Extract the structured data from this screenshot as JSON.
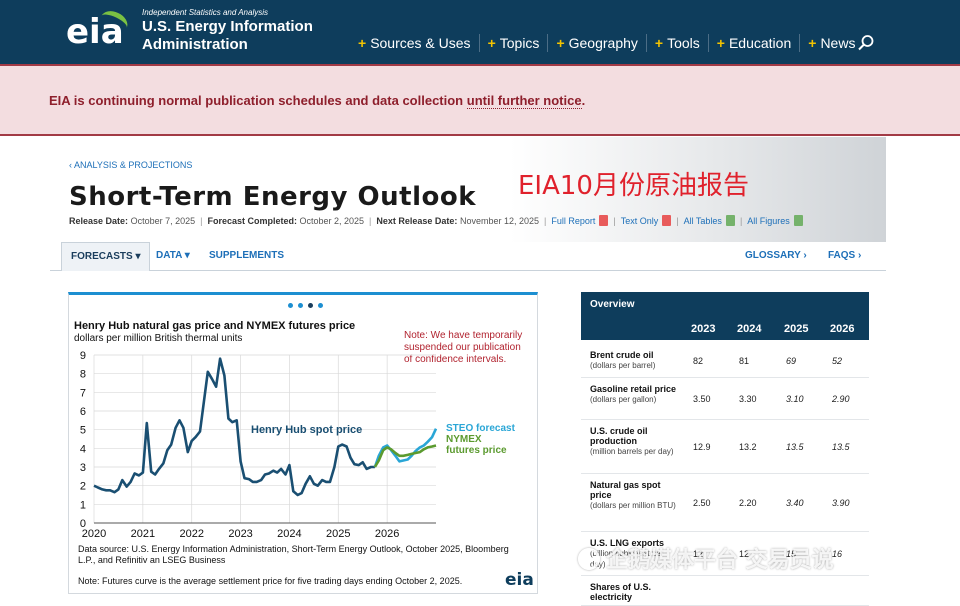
{
  "header": {
    "logo_text": "eia",
    "tagline": "Independent Statistics and Analysis",
    "org_name": "U.S. Energy Information Administration",
    "nav": [
      "Sources & Uses",
      "Topics",
      "Geography",
      "Tools",
      "Education",
      "News"
    ],
    "search_icon": "search-icon"
  },
  "notice": {
    "prefix": "EIA is continuing normal publication schedules and data collection ",
    "link": "until further notice",
    "suffix": "."
  },
  "page": {
    "breadcrumb": "‹ ANALYSIS & PROJECTIONS",
    "title": "Short-Term Energy Outlook",
    "overlay_text": "EIA10月份原油报告",
    "release_label": "Release Date:",
    "release_date": "October 7, 2025",
    "forecast_label": "Forecast Completed:",
    "forecast_date": "October 2, 2025",
    "next_label": "Next Release Date:",
    "next_date": "November 12, 2025",
    "links": [
      "Full Report",
      "Text Only",
      "All Tables",
      "All Figures"
    ]
  },
  "tabs": {
    "forecasts": "FORECASTS ▾",
    "data": "DATA ▾",
    "supplements": "SUPPLEMENTS",
    "glossary": "GLOSSARY ›",
    "faqs": "FAQS ›"
  },
  "chart": {
    "title": "Henry Hub natural gas price and NYMEX futures price",
    "subtitle": "dollars per million British thermal units",
    "note": "Note: We have temporarily suspended our publication of confidence intervals.",
    "source": "Data source: U.S. Energy Information Administration, Short-Term Energy Outlook, October 2025, Bloomberg L.P., and Refinitiv an LSEG Business",
    "footnote": "Note: Futures curve is the average settlement price for five trading days ending October 2, 2025.",
    "logo": "eia",
    "label_spot": "Henry Hub spot price",
    "label_steo": "STEO forecast",
    "label_nymex": "NYMEX futures price"
  },
  "chart_data": {
    "type": "line",
    "title": "Henry Hub natural gas price and NYMEX futures price",
    "ylabel": "dollars per million British thermal units",
    "ylim": [
      0,
      9
    ],
    "y_ticks": [
      "0",
      "1",
      "2",
      "3",
      "4",
      "5",
      "6",
      "7",
      "8",
      "9"
    ],
    "x_ticks": [
      "2020",
      "2021",
      "2022",
      "2023",
      "2024",
      "2025",
      "2026"
    ],
    "xlim": [
      2020,
      2027
    ],
    "grid": true,
    "series": [
      {
        "name": "Henry Hub spot price",
        "color": "#1a4f72",
        "x": [
          2020.0,
          2020.08,
          2020.17,
          2020.25,
          2020.33,
          2020.42,
          2020.5,
          2020.58,
          2020.67,
          2020.75,
          2020.83,
          2020.92,
          2021.0,
          2021.08,
          2021.17,
          2021.25,
          2021.33,
          2021.42,
          2021.5,
          2021.58,
          2021.67,
          2021.75,
          2021.83,
          2021.92,
          2022.0,
          2022.08,
          2022.17,
          2022.25,
          2022.33,
          2022.42,
          2022.5,
          2022.58,
          2022.67,
          2022.75,
          2022.83,
          2022.92,
          2023.0,
          2023.08,
          2023.17,
          2023.25,
          2023.33,
          2023.42,
          2023.5,
          2023.58,
          2023.67,
          2023.75,
          2023.83,
          2023.92,
          2024.0,
          2024.08,
          2024.17,
          2024.25,
          2024.33,
          2024.42,
          2024.5,
          2024.58,
          2024.67,
          2024.75,
          2024.83,
          2024.92,
          2025.0,
          2025.08,
          2025.17,
          2025.25,
          2025.33,
          2025.42,
          2025.5,
          2025.58,
          2025.67,
          2025.75
        ],
        "y": [
          2.0,
          1.9,
          1.8,
          1.75,
          1.75,
          1.65,
          1.8,
          2.3,
          1.95,
          2.2,
          2.65,
          2.55,
          2.7,
          5.35,
          2.75,
          2.6,
          2.9,
          3.2,
          3.9,
          4.2,
          5.1,
          5.5,
          5.1,
          3.8,
          4.4,
          4.6,
          4.9,
          6.5,
          8.1,
          7.7,
          7.3,
          8.8,
          7.9,
          5.6,
          5.4,
          5.5,
          3.3,
          2.4,
          2.35,
          2.2,
          2.2,
          2.3,
          2.6,
          2.65,
          2.8,
          2.7,
          2.9,
          2.6,
          3.1,
          1.7,
          1.5,
          1.6,
          2.1,
          2.5,
          2.1,
          2.0,
          2.3,
          2.2,
          2.2,
          3.0,
          4.1,
          4.2,
          4.1,
          3.5,
          3.15,
          3.1,
          3.25,
          2.9,
          3.0,
          3.0
        ]
      },
      {
        "name": "STEO forecast",
        "color": "#2aa6d6",
        "x": [
          2025.75,
          2025.83,
          2025.92,
          2026.0,
          2026.08,
          2026.17,
          2026.25,
          2026.33,
          2026.42,
          2026.5,
          2026.58,
          2026.67,
          2026.75,
          2026.83,
          2026.92,
          2027.0
        ],
        "y": [
          3.0,
          3.6,
          4.05,
          4.15,
          3.9,
          3.6,
          3.3,
          3.35,
          3.4,
          3.6,
          3.85,
          4.05,
          4.15,
          4.35,
          4.6,
          5.05
        ]
      },
      {
        "name": "NYMEX futures price",
        "color": "#5b9a2f",
        "x": [
          2025.75,
          2025.83,
          2025.92,
          2026.0,
          2026.08,
          2026.17,
          2026.25,
          2026.33,
          2026.42,
          2026.5,
          2026.58,
          2026.67,
          2026.75,
          2026.83,
          2026.92,
          2027.0
        ],
        "y": [
          3.0,
          3.35,
          3.9,
          4.05,
          3.95,
          3.75,
          3.6,
          3.6,
          3.65,
          3.7,
          3.75,
          3.8,
          3.95,
          4.05,
          4.1,
          4.15
        ]
      }
    ]
  },
  "overview": {
    "title": "Overview",
    "years": [
      "2023",
      "2024",
      "2025",
      "2026"
    ],
    "rows": [
      {
        "name": "Brent crude oil",
        "unit": "(dollars per barrel)",
        "values": [
          "82",
          "81",
          "69",
          "52"
        ]
      },
      {
        "name": "Gasoline retail price",
        "unit": "(dollars per gallon)",
        "values": [
          "3.50",
          "3.30",
          "3.10",
          "2.90"
        ]
      },
      {
        "name": "U.S. crude oil production",
        "unit": "(million barrels per day)",
        "values": [
          "12.9",
          "13.2",
          "13.5",
          "13.5"
        ]
      },
      {
        "name": "Natural gas spot price",
        "unit": "(dollars per million BTU)",
        "values": [
          "2.50",
          "2.20",
          "3.40",
          "3.90"
        ]
      },
      {
        "name": "U.S. LNG exports",
        "unit": "(billion cubic feet per day)",
        "values": [
          "12",
          "12",
          "15",
          "16"
        ]
      },
      {
        "name": "Shares of U.S. electricity",
        "unit": "",
        "values": [
          "",
          "",
          "",
          ""
        ]
      }
    ]
  },
  "watermark": {
    "text": "企鹅媒体平台 交易员说"
  }
}
